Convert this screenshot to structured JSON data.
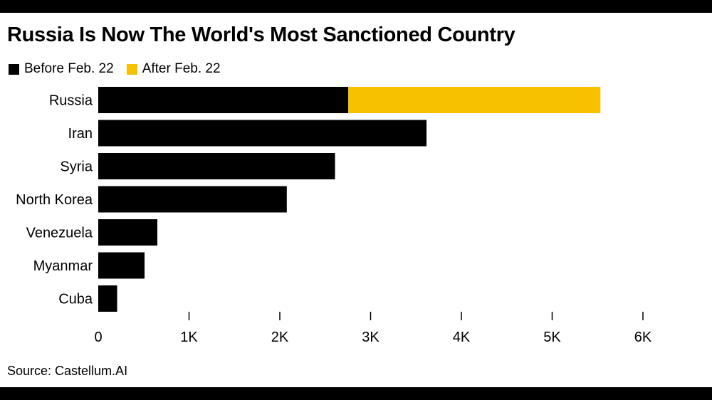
{
  "title": "Russia Is Now The World's Most Sanctioned Country",
  "source": "Source: Castellum.AI",
  "chart_data": {
    "type": "bar",
    "orientation": "horizontal",
    "stacked": true,
    "title": "Russia Is Now The World's Most Sanctioned Country",
    "categories": [
      "Russia",
      "Iran",
      "Syria",
      "North Korea",
      "Venezuela",
      "Myanmar",
      "Cuba"
    ],
    "series": [
      {
        "name": "Before Feb. 22",
        "color": "#000000",
        "values": [
          2754,
          3616,
          2608,
          2077,
          651,
          510,
          208
        ]
      },
      {
        "name": "After Feb. 22",
        "color": "#f7c100",
        "values": [
          2778,
          0,
          0,
          0,
          0,
          0,
          0
        ]
      }
    ],
    "xlim": [
      0,
      6000
    ],
    "ticks": [
      {
        "value": 0,
        "label": "0"
      },
      {
        "value": 1000,
        "label": "1K"
      },
      {
        "value": 2000,
        "label": "2K"
      },
      {
        "value": 3000,
        "label": "3K"
      },
      {
        "value": 4000,
        "label": "4K"
      },
      {
        "value": 5000,
        "label": "5K"
      },
      {
        "value": 6000,
        "label": "6K"
      }
    ],
    "grid": false,
    "legend_position": "top-left"
  }
}
